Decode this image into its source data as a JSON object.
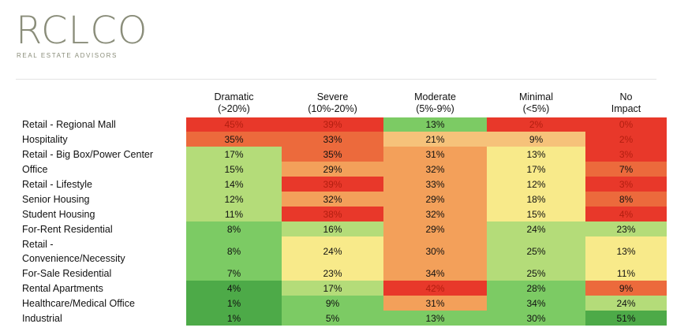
{
  "brand": {
    "logo": "RCLCO",
    "tagline": "REAL ESTATE ADVISORS"
  },
  "chart_data": {
    "type": "table",
    "title": "",
    "columns": [
      "Dramatic\n(>20%)",
      "Severe\n(10%-20%)",
      "Moderate\n(5%-9%)",
      "Minimal\n(<5%)",
      "No\nImpact"
    ],
    "rows": [
      {
        "label": "Retail - Regional Mall",
        "values": [
          "45%",
          "39%",
          "13%",
          "2%",
          "0%"
        ]
      },
      {
        "label": "Hospitality",
        "values": [
          "35%",
          "33%",
          "21%",
          "9%",
          "2%"
        ]
      },
      {
        "label": "Retail - Big Box/Power Center",
        "values": [
          "17%",
          "35%",
          "31%",
          "13%",
          "3%"
        ]
      },
      {
        "label": "Office",
        "values": [
          "15%",
          "29%",
          "32%",
          "17%",
          "7%"
        ]
      },
      {
        "label": "Retail - Lifestyle",
        "values": [
          "14%",
          "39%",
          "33%",
          "12%",
          "3%"
        ]
      },
      {
        "label": "Senior Housing",
        "values": [
          "12%",
          "32%",
          "29%",
          "18%",
          "8%"
        ]
      },
      {
        "label": "Student Housing",
        "values": [
          "11%",
          "38%",
          "32%",
          "15%",
          "4%"
        ]
      },
      {
        "label": "For-Rent Residential",
        "values": [
          "8%",
          "16%",
          "29%",
          "24%",
          "23%"
        ]
      },
      {
        "label": "Retail -\nConvenience/Necessity",
        "values": [
          "8%",
          "24%",
          "30%",
          "25%",
          "13%"
        ]
      },
      {
        "label": "For-Sale Residential",
        "values": [
          "7%",
          "23%",
          "34%",
          "25%",
          "11%"
        ]
      },
      {
        "label": "Rental Apartments",
        "values": [
          "4%",
          "17%",
          "42%",
          "28%",
          "9%"
        ]
      },
      {
        "label": "Healthcare/Medical Office",
        "values": [
          "1%",
          "9%",
          "31%",
          "34%",
          "24%"
        ]
      },
      {
        "label": "Industrial",
        "values": [
          "1%",
          "5%",
          "13%",
          "30%",
          "51%"
        ]
      }
    ],
    "colors": {
      "strong_red": "#e8382a",
      "red_orange": "#ec6a3c",
      "orange": "#f3a05a",
      "light_orange": "#f6c27a",
      "yellow": "#f8ea8a",
      "light_green": "#b4dc79",
      "green": "#7ccb64",
      "dark_green": "#4daa48"
    }
  }
}
